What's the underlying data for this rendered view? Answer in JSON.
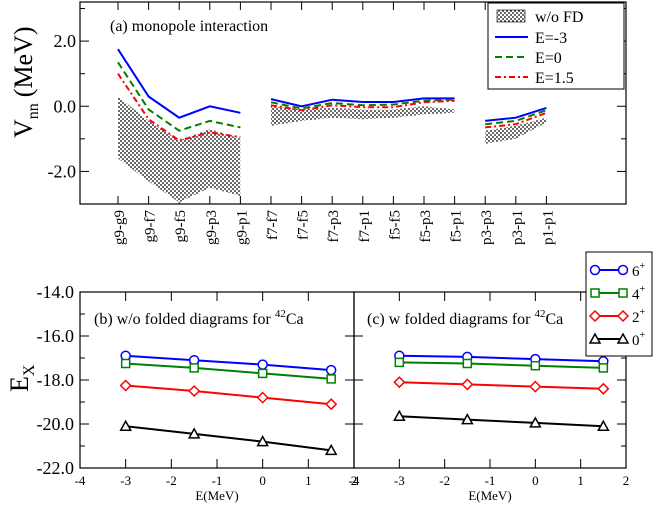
{
  "colors": {
    "e_m3": "#0000ff",
    "e_0": "#008000",
    "e_15": "#ff0000",
    "fd": "#000000",
    "s6": "#0000ff",
    "s4": "#008000",
    "s2": "#ff0000",
    "s0": "#000000"
  },
  "chart_data": [
    {
      "id": "a",
      "type": "line",
      "title": "(a) monopole interaction",
      "ylabel_main": "V",
      "ylabel_sub": "nn",
      "ylabel_unit": "(MeV)",
      "ylim": [
        -3.0,
        3.2
      ],
      "yticks": [
        "2.0",
        "0.0",
        "-2.0"
      ],
      "ytick_values": [
        2.0,
        0.0,
        -2.0
      ],
      "categories": [
        "g9-g9",
        "g9-f7",
        "g9-f5",
        "g9-p3",
        "g9-p1",
        "f7-f7",
        "f7-f5",
        "f7-p3",
        "f7-p1",
        "f5-f5",
        "f5-p3",
        "f5-p1",
        "p3-p3",
        "p3-p1",
        "p1-p1"
      ],
      "groups": [
        [
          0,
          1,
          2,
          3,
          4
        ],
        [
          5,
          6,
          7,
          8,
          9,
          10,
          11
        ],
        [
          12,
          13,
          14
        ]
      ],
      "legend": [
        "w/o FD",
        "E=-3",
        "E=0",
        "E=1.5"
      ],
      "band_upper": [
        0.3,
        -0.45,
        -1.05,
        -0.7,
        -1.0,
        0.0,
        -0.1,
        -0.05,
        -0.1,
        -0.1,
        0.0,
        -0.1,
        -0.75,
        -0.6,
        -0.35
      ],
      "band_lower": [
        -1.6,
        -2.3,
        -2.95,
        -2.5,
        -2.75,
        -0.6,
        -0.45,
        -0.35,
        -0.4,
        -0.35,
        -0.25,
        -0.2,
        -1.15,
        -1.0,
        -0.5
      ],
      "series": [
        {
          "name": "E=-3",
          "values": [
            1.75,
            0.3,
            -0.35,
            0.0,
            -0.2,
            0.22,
            0.0,
            0.2,
            0.13,
            0.13,
            0.24,
            0.24,
            -0.45,
            -0.35,
            -0.05
          ]
        },
        {
          "name": "E=0",
          "values": [
            1.35,
            -0.1,
            -0.75,
            -0.45,
            -0.65,
            0.12,
            -0.07,
            0.1,
            0.03,
            0.05,
            0.17,
            0.2,
            -0.55,
            -0.45,
            -0.12
          ]
        },
        {
          "name": "E=1.5",
          "values": [
            1.0,
            -0.4,
            -1.05,
            -0.8,
            -0.95,
            0.03,
            -0.12,
            0.03,
            -0.03,
            -0.03,
            0.12,
            0.17,
            -0.65,
            -0.55,
            -0.2
          ]
        }
      ]
    },
    {
      "id": "b",
      "type": "line",
      "title_main": "(b) w/o folded diagrams for ",
      "title_sup": "42",
      "title_el": "Ca",
      "ylabel_main": "E",
      "ylabel_sub": "X",
      "xlabel": "E(MeV)",
      "xlim": [
        -4,
        2
      ],
      "ylim": [
        -22,
        -14
      ],
      "xticks": [
        "-4",
        "-3",
        "-2",
        "-1",
        "0",
        "1",
        "2"
      ],
      "xtick_values": [
        -4,
        -3,
        -2,
        -1,
        0,
        1,
        2
      ],
      "yticks": [
        "-14.0",
        "-16.0",
        "-18.0",
        "-20.0",
        "-22.0"
      ],
      "ytick_values": [
        -14,
        -16,
        -18,
        -20,
        -22
      ],
      "x": [
        -3,
        -1.5,
        0,
        1.5
      ],
      "series": [
        {
          "name": "6+",
          "values": [
            -16.9,
            -17.1,
            -17.3,
            -17.55
          ]
        },
        {
          "name": "4+",
          "values": [
            -17.25,
            -17.45,
            -17.7,
            -17.95
          ]
        },
        {
          "name": "2+",
          "values": [
            -18.25,
            -18.5,
            -18.8,
            -19.1
          ]
        },
        {
          "name": "0+",
          "values": [
            -20.1,
            -20.45,
            -20.8,
            -21.2
          ]
        }
      ]
    },
    {
      "id": "c",
      "type": "line",
      "title_main": "(c) w folded diagrams for ",
      "title_sup": "42",
      "title_el": "Ca",
      "xlabel": "E(MeV)",
      "xlim": [
        -4,
        2
      ],
      "ylim": [
        -22,
        -14
      ],
      "xticks": [
        "-4",
        "-3",
        "-2",
        "-1",
        "0",
        "1",
        "2"
      ],
      "xtick_values": [
        -4,
        -3,
        -2,
        -1,
        0,
        1,
        2
      ],
      "x": [
        -3,
        -1.5,
        0,
        1.5
      ],
      "legend_labels": [
        "6",
        "4",
        "2",
        "0"
      ],
      "legend_sup": "+",
      "series": [
        {
          "name": "6+",
          "values": [
            -16.9,
            -16.95,
            -17.05,
            -17.15
          ]
        },
        {
          "name": "4+",
          "values": [
            -17.2,
            -17.25,
            -17.35,
            -17.45
          ]
        },
        {
          "name": "2+",
          "values": [
            -18.1,
            -18.2,
            -18.3,
            -18.4
          ]
        },
        {
          "name": "0+",
          "values": [
            -19.65,
            -19.8,
            -19.95,
            -20.1
          ]
        }
      ]
    }
  ]
}
